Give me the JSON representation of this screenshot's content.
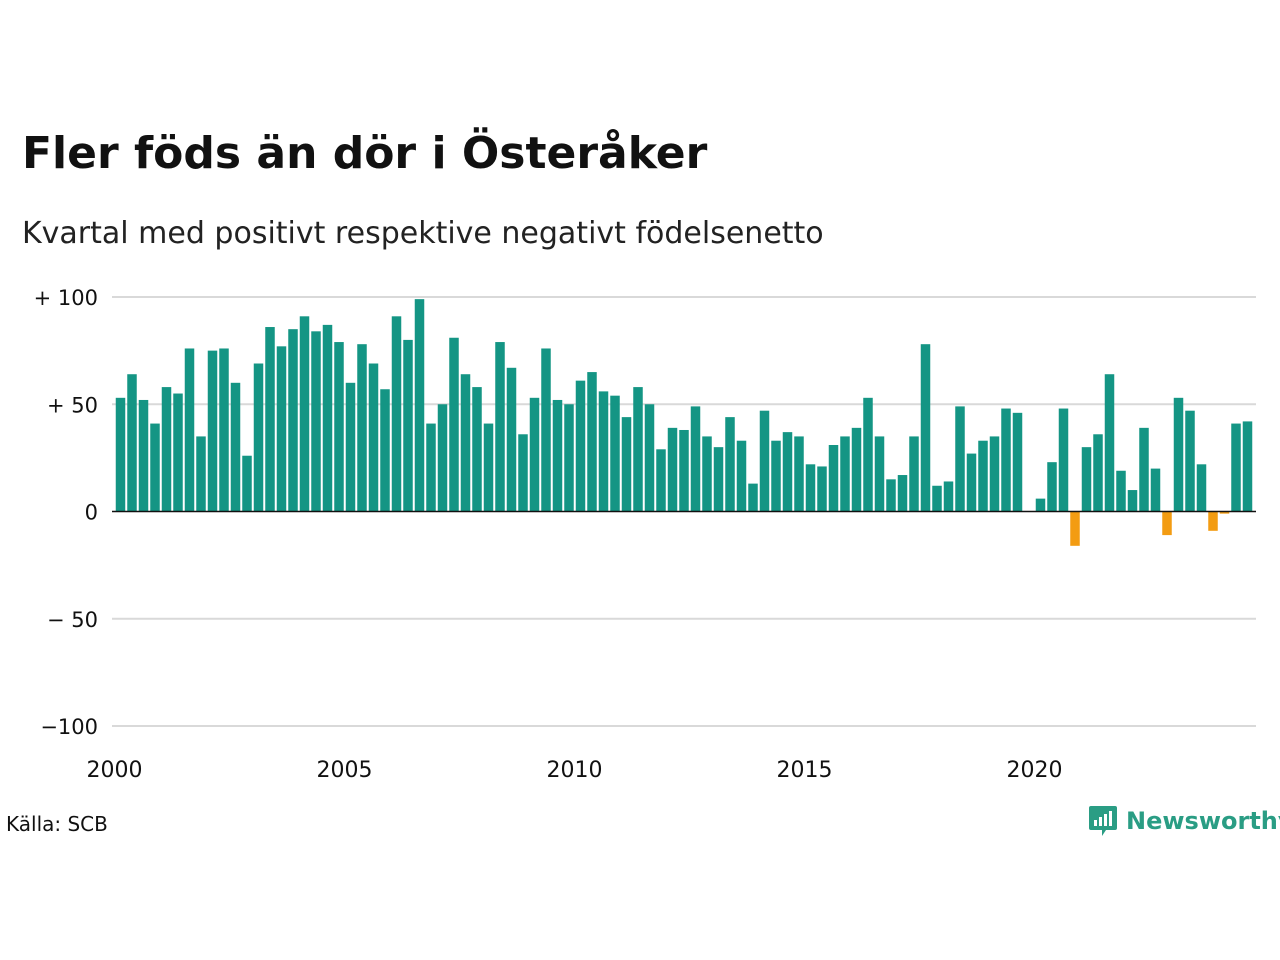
{
  "title": "Fler föds än dör i Österåker",
  "subtitle": "Kvartal med positivt respektive negativt födelsenetto",
  "source": "Källa: SCB",
  "brand": {
    "name": "Newsworthy",
    "icon": "newsworthy-logo-icon"
  },
  "colors": {
    "positive": "#149584",
    "negative": "#f39c12",
    "grid": "#d9d9d9",
    "axis": "#111111",
    "brand": "#2a9d84"
  },
  "chart_data": {
    "type": "bar",
    "title": "Fler föds än dör i Österåker",
    "subtitle": "Kvartal med positivt respektive negativt födelsenetto",
    "xlabel": "",
    "ylabel": "",
    "ylim": [
      -100,
      100
    ],
    "xlim": [
      2000,
      2024.75
    ],
    "yticks": [
      {
        "value": 100,
        "label": "+ 100"
      },
      {
        "value": 50,
        "label": "+  50"
      },
      {
        "value": 0,
        "label": "0"
      },
      {
        "value": -50,
        "label": "− 50"
      },
      {
        "value": -100,
        "label": "−100"
      }
    ],
    "xticks": [
      {
        "value": 2000,
        "label": "2000"
      },
      {
        "value": 2005,
        "label": "2005"
      },
      {
        "value": 2010,
        "label": "2010"
      },
      {
        "value": 2015,
        "label": "2015"
      },
      {
        "value": 2020,
        "label": "2020"
      }
    ],
    "grid": true,
    "start_year": 2000,
    "periods_per_year": 4,
    "values": [
      53,
      64,
      52,
      41,
      58,
      55,
      76,
      35,
      75,
      76,
      60,
      26,
      69,
      86,
      77,
      85,
      91,
      84,
      87,
      79,
      60,
      78,
      69,
      57,
      91,
      80,
      99,
      41,
      50,
      81,
      64,
      58,
      41,
      79,
      67,
      36,
      53,
      76,
      52,
      50,
      61,
      65,
      56,
      54,
      44,
      58,
      50,
      29,
      39,
      38,
      49,
      35,
      30,
      44,
      33,
      13,
      47,
      33,
      37,
      35,
      22,
      21,
      31,
      35,
      39,
      53,
      35,
      15,
      17,
      35,
      78,
      12,
      14,
      49,
      27,
      33,
      35,
      48,
      46,
      0,
      6,
      23,
      48,
      -16,
      30,
      36,
      64,
      19,
      10,
      39,
      20,
      -11,
      53,
      47,
      22,
      -9,
      -1,
      41,
      42
    ]
  }
}
